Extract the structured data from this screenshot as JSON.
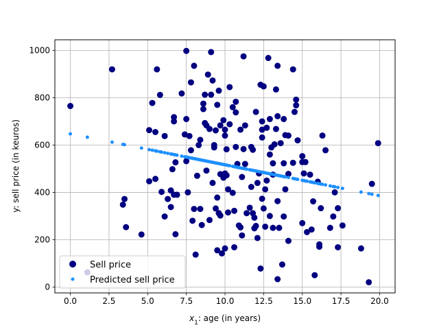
{
  "chart_data": {
    "type": "scatter",
    "title": "",
    "xlabel": {
      "prefix": "x",
      "subscript": "1",
      "suffix": ": age (in years)"
    },
    "ylabel": "y: sell price (in keuros)",
    "xlim": [
      -1.0,
      21.0
    ],
    "ylim": [
      -25,
      1045
    ],
    "x_ticks": [
      0.0,
      2.5,
      5.0,
      7.5,
      10.0,
      12.5,
      15.0,
      17.5,
      20.0
    ],
    "x_tick_labels": [
      "0.0",
      "2.5",
      "5.0",
      "7.5",
      "10.0",
      "12.5",
      "15.0",
      "17.5",
      "20.0"
    ],
    "y_ticks": [
      0,
      200,
      400,
      600,
      800,
      1000
    ],
    "y_tick_labels": [
      "0",
      "200",
      "400",
      "600",
      "800",
      "1000"
    ],
    "grid": true,
    "legend_position": "lower-left",
    "series": [
      {
        "name": "Sell price",
        "color": "#000080",
        "marker": "large-dot",
        "points": [
          [
            0.0,
            765
          ],
          [
            1.1,
            62
          ],
          [
            2.7,
            920
          ],
          [
            3.4,
            348
          ],
          [
            3.5,
            372
          ],
          [
            3.6,
            253
          ],
          [
            4.6,
            222
          ],
          [
            5.1,
            663
          ],
          [
            5.1,
            447
          ],
          [
            5.3,
            778
          ],
          [
            5.5,
            655
          ],
          [
            5.5,
            457
          ],
          [
            5.6,
            920
          ],
          [
            5.8,
            812
          ],
          [
            5.9,
            402
          ],
          [
            6.1,
            638
          ],
          [
            6.1,
            298
          ],
          [
            6.3,
            372
          ],
          [
            6.5,
            338
          ],
          [
            6.5,
            408
          ],
          [
            6.6,
            498
          ],
          [
            6.7,
            718
          ],
          [
            6.7,
            700
          ],
          [
            6.7,
            390
          ],
          [
            6.8,
            223
          ],
          [
            6.8,
            527
          ],
          [
            6.9,
            390
          ],
          [
            7.2,
            818
          ],
          [
            7.4,
            645
          ],
          [
            7.5,
            998
          ],
          [
            7.5,
            710
          ],
          [
            7.5,
            532
          ],
          [
            7.6,
            400
          ],
          [
            7.7,
            638
          ],
          [
            7.8,
            578
          ],
          [
            7.8,
            865
          ],
          [
            7.9,
            280
          ],
          [
            8.0,
            935
          ],
          [
            8.0,
            330
          ],
          [
            8.1,
            137
          ],
          [
            8.2,
            470
          ],
          [
            8.3,
            600
          ],
          [
            8.4,
            622
          ],
          [
            8.4,
            330
          ],
          [
            8.5,
            262
          ],
          [
            8.6,
            752
          ],
          [
            8.6,
            775
          ],
          [
            8.7,
            693
          ],
          [
            8.7,
            813
          ],
          [
            8.8,
            683
          ],
          [
            8.8,
            492
          ],
          [
            8.9,
            898
          ],
          [
            9.0,
            668
          ],
          [
            9.0,
            283
          ],
          [
            9.1,
            993
          ],
          [
            9.1,
            813
          ],
          [
            9.2,
            440
          ],
          [
            9.2,
            873
          ],
          [
            9.3,
            600
          ],
          [
            9.3,
            590
          ],
          [
            9.4,
            332
          ],
          [
            9.4,
            662
          ],
          [
            9.5,
            155
          ],
          [
            9.5,
            770
          ],
          [
            9.5,
            378
          ],
          [
            9.6,
            830
          ],
          [
            9.6,
            312
          ],
          [
            9.7,
            477
          ],
          [
            9.7,
            302
          ],
          [
            9.7,
            683
          ],
          [
            9.8,
            142
          ],
          [
            9.9,
            462
          ],
          [
            9.9,
            705
          ],
          [
            10.0,
            640
          ],
          [
            10.0,
            665
          ],
          [
            10.0,
            480
          ],
          [
            10.0,
            163
          ],
          [
            10.1,
            582
          ],
          [
            10.1,
            472
          ],
          [
            10.2,
            413
          ],
          [
            10.2,
            315
          ],
          [
            10.3,
            845
          ],
          [
            10.3,
            688
          ],
          [
            10.5,
            398
          ],
          [
            10.5,
            760
          ],
          [
            10.6,
            168
          ],
          [
            10.6,
            322
          ],
          [
            10.7,
            738
          ],
          [
            10.7,
            592
          ],
          [
            10.7,
            783
          ],
          [
            10.8,
            520
          ],
          [
            10.9,
            260
          ],
          [
            11.0,
            665
          ],
          [
            11.0,
            252
          ],
          [
            11.1,
            218
          ],
          [
            11.1,
            465
          ],
          [
            11.2,
            975
          ],
          [
            11.2,
            583
          ],
          [
            11.3,
            520
          ],
          [
            11.3,
            683
          ],
          [
            11.4,
            312
          ],
          [
            11.6,
            335
          ],
          [
            11.7,
            423
          ],
          [
            11.7,
            592
          ],
          [
            11.8,
            312
          ],
          [
            11.8,
            580
          ],
          [
            11.9,
            248
          ],
          [
            11.9,
            293
          ],
          [
            12.0,
            258
          ],
          [
            12.0,
            740
          ],
          [
            12.1,
            440
          ],
          [
            12.1,
            207
          ],
          [
            12.2,
            480
          ],
          [
            12.3,
            855
          ],
          [
            12.3,
            78
          ],
          [
            12.4,
            665
          ],
          [
            12.4,
            632
          ],
          [
            12.4,
            700
          ],
          [
            12.4,
            373
          ],
          [
            12.5,
            848
          ],
          [
            12.5,
            332
          ],
          [
            12.6,
            413
          ],
          [
            12.6,
            255
          ],
          [
            12.7,
            673
          ],
          [
            12.7,
            450
          ],
          [
            12.8,
            968
          ],
          [
            12.9,
            560
          ],
          [
            12.9,
            710
          ],
          [
            12.9,
            300
          ],
          [
            13.0,
            590
          ],
          [
            13.1,
            250
          ],
          [
            13.1,
            523
          ],
          [
            13.1,
            475
          ],
          [
            13.2,
            603
          ],
          [
            13.3,
            835
          ],
          [
            13.3,
            668
          ],
          [
            13.4,
            363
          ],
          [
            13.4,
            935
          ],
          [
            13.4,
            722
          ],
          [
            13.4,
            33
          ],
          [
            13.5,
            250
          ],
          [
            13.6,
            608
          ],
          [
            13.7,
            95
          ],
          [
            13.8,
            710
          ],
          [
            13.8,
            298
          ],
          [
            13.8,
            523
          ],
          [
            13.9,
            642
          ],
          [
            13.9,
            413
          ],
          [
            14.1,
            478
          ],
          [
            14.1,
            640
          ],
          [
            14.1,
            195
          ],
          [
            14.4,
            920
          ],
          [
            14.4,
            525
          ],
          [
            14.5,
            740
          ],
          [
            14.6,
            792
          ],
          [
            14.6,
            768
          ],
          [
            14.7,
            620
          ],
          [
            15.0,
            553
          ],
          [
            15.0,
            528
          ],
          [
            15.0,
            270
          ],
          [
            15.1,
            480
          ],
          [
            15.2,
            528
          ],
          [
            15.3,
            232
          ],
          [
            15.5,
            475
          ],
          [
            15.6,
            243
          ],
          [
            15.7,
            362
          ],
          [
            15.8,
            50
          ],
          [
            16.0,
            445
          ],
          [
            16.1,
            180
          ],
          [
            16.1,
            170
          ],
          [
            16.2,
            333
          ],
          [
            16.3,
            640
          ],
          [
            16.5,
            578
          ],
          [
            16.8,
            250
          ],
          [
            17.0,
            298
          ],
          [
            17.1,
            400
          ],
          [
            17.3,
            168
          ],
          [
            17.3,
            333
          ],
          [
            17.6,
            260
          ],
          [
            18.8,
            163
          ],
          [
            19.3,
            20
          ],
          [
            19.5,
            436
          ],
          [
            19.9,
            608
          ]
        ]
      },
      {
        "name": "Predicted sell price",
        "color": "#1e90ff",
        "marker": "small-dot",
        "regression": {
          "intercept": 647.5,
          "slope": -13.1
        },
        "x": [
          0.0,
          1.1,
          2.7,
          3.4,
          3.5,
          4.6,
          5.1,
          5.3,
          5.5,
          5.6,
          5.8,
          5.9,
          6.1,
          6.3,
          6.5,
          6.6,
          6.7,
          6.8,
          6.9,
          7.2,
          7.4,
          7.5,
          7.6,
          7.7,
          7.8,
          7.9,
          8.0,
          8.1,
          8.2,
          8.3,
          8.4,
          8.5,
          8.6,
          8.7,
          8.8,
          8.9,
          9.0,
          9.1,
          9.2,
          9.3,
          9.4,
          9.5,
          9.6,
          9.7,
          9.8,
          9.9,
          10.0,
          10.1,
          10.2,
          10.3,
          10.5,
          10.6,
          10.7,
          10.8,
          10.9,
          11.0,
          11.1,
          11.2,
          11.3,
          11.4,
          11.6,
          11.7,
          11.8,
          11.9,
          12.0,
          12.1,
          12.2,
          12.3,
          12.4,
          12.5,
          12.6,
          12.7,
          12.8,
          12.9,
          13.0,
          13.1,
          13.2,
          13.3,
          13.4,
          13.5,
          13.6,
          13.7,
          13.8,
          13.9,
          14.1,
          14.4,
          14.5,
          14.6,
          14.7,
          15.0,
          15.1,
          15.2,
          15.3,
          15.5,
          15.6,
          15.7,
          15.8,
          16.0,
          16.1,
          16.2,
          16.3,
          16.5,
          16.8,
          17.0,
          17.1,
          17.3,
          17.6,
          18.8,
          19.3,
          19.5,
          19.9
        ]
      }
    ]
  }
}
